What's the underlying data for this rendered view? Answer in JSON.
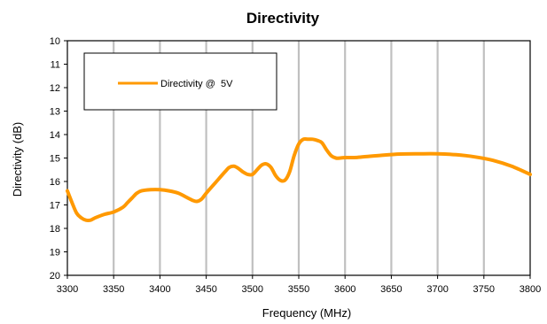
{
  "chart_data": {
    "type": "line",
    "title": "Directivity",
    "xlabel": "Frequency (MHz)",
    "ylabel": "Directivity (dB)",
    "xlim": [
      3300,
      3800
    ],
    "ylim": [
      10,
      20
    ],
    "y_inverted": true,
    "xticks": [
      3300,
      3350,
      3400,
      3450,
      3500,
      3550,
      3600,
      3650,
      3700,
      3750,
      3800
    ],
    "yticks": [
      10,
      11,
      12,
      13,
      14,
      15,
      16,
      17,
      18,
      19,
      20
    ],
    "grid": "vertical",
    "legend_position": "top-left",
    "series": [
      {
        "name": "Directivity @  5V",
        "color": "#FF9900",
        "x": [
          3300,
          3305,
          3310,
          3315,
          3320,
          3325,
          3330,
          3340,
          3350,
          3360,
          3365,
          3370,
          3375,
          3380,
          3390,
          3400,
          3410,
          3420,
          3430,
          3435,
          3440,
          3445,
          3450,
          3460,
          3470,
          3475,
          3480,
          3485,
          3490,
          3495,
          3500,
          3505,
          3510,
          3515,
          3520,
          3525,
          3530,
          3535,
          3540,
          3545,
          3550,
          3555,
          3560,
          3565,
          3570,
          3575,
          3580,
          3585,
          3590,
          3595,
          3600,
          3610,
          3620,
          3640,
          3660,
          3680,
          3700,
          3720,
          3740,
          3760,
          3780,
          3800
        ],
        "y": [
          16.4,
          16.9,
          17.35,
          17.55,
          17.65,
          17.65,
          17.55,
          17.4,
          17.3,
          17.1,
          16.9,
          16.7,
          16.5,
          16.4,
          16.35,
          16.35,
          16.4,
          16.5,
          16.7,
          16.8,
          16.85,
          16.75,
          16.5,
          16.05,
          15.6,
          15.4,
          15.35,
          15.45,
          15.6,
          15.7,
          15.7,
          15.5,
          15.3,
          15.25,
          15.4,
          15.75,
          15.95,
          15.95,
          15.6,
          14.9,
          14.4,
          14.2,
          14.2,
          14.2,
          14.25,
          14.35,
          14.65,
          14.9,
          15.0,
          15.0,
          14.98,
          14.98,
          14.95,
          14.88,
          14.83,
          14.82,
          14.82,
          14.86,
          14.95,
          15.1,
          15.35,
          15.7
        ]
      }
    ]
  }
}
